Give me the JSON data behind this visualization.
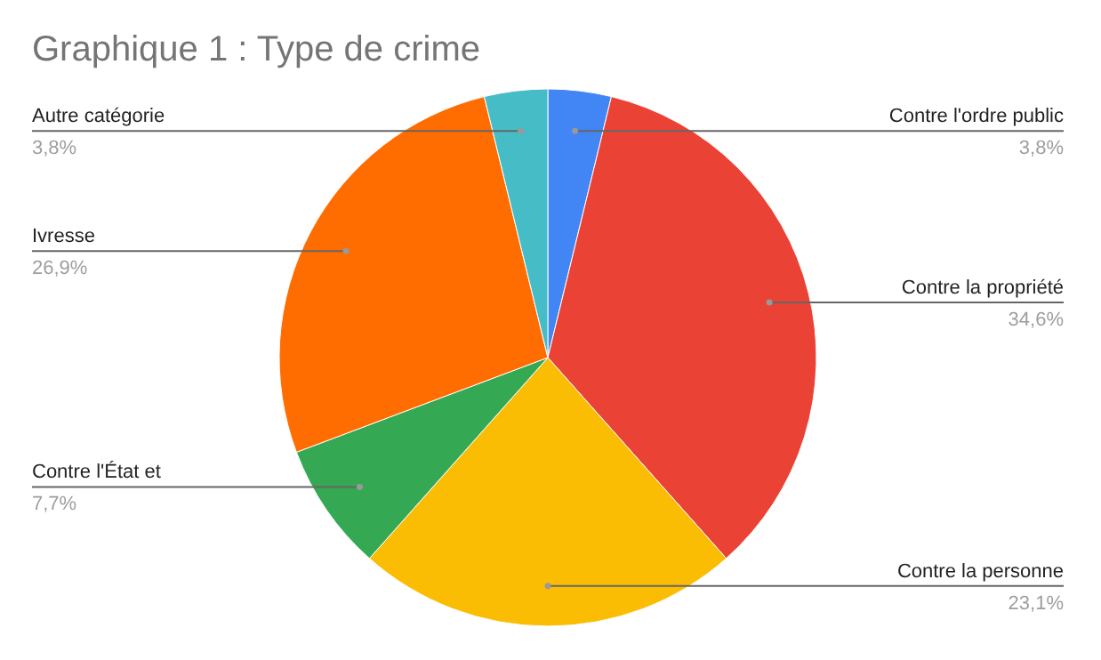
{
  "chart_data": {
    "type": "pie",
    "title": "Graphique 1 : Type de crime",
    "categories": [
      "Contre l'ordre public",
      "Contre la propriété",
      "Contre la personne",
      "Contre l'État et",
      "Ivresse",
      "Autre catégorie"
    ],
    "values": [
      3.8,
      34.6,
      23.1,
      7.7,
      26.9,
      3.8
    ],
    "value_labels": [
      "3,8%",
      "34,6%",
      "23,1%",
      "7,7%",
      "26,9%",
      "3,8%"
    ],
    "colors": [
      "#4285f4",
      "#ea4335",
      "#fbbc04",
      "#34a853",
      "#ff6d01",
      "#46bdc6"
    ]
  }
}
